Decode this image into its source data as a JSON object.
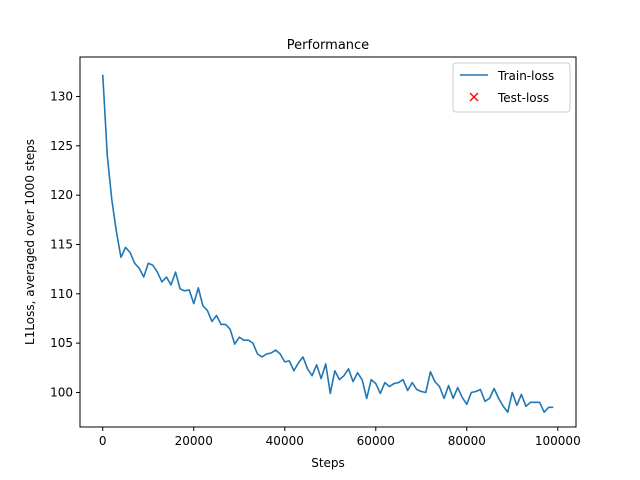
{
  "chart_data": {
    "type": "line",
    "title": "Performance",
    "xlabel": "Steps",
    "ylabel": "L1Loss, averaged over 1000 steps",
    "xlim": [
      -5000,
      104000
    ],
    "ylim": [
      96.5,
      134.0
    ],
    "xticks": [
      0,
      20000,
      40000,
      60000,
      80000,
      100000
    ],
    "yticks": [
      100,
      105,
      110,
      115,
      120,
      125,
      130
    ],
    "grid": false,
    "legend": {
      "placement": "top-right"
    },
    "series": [
      {
        "name": "Train-loss",
        "color": "#1f77b4",
        "marker": "line",
        "x": [
          0,
          1000,
          2000,
          3000,
          4000,
          5000,
          6000,
          7000,
          8000,
          9000,
          10000,
          11000,
          12000,
          13000,
          14000,
          15000,
          16000,
          17000,
          18000,
          19000,
          20000,
          21000,
          22000,
          23000,
          24000,
          25000,
          26000,
          27000,
          28000,
          29000,
          30000,
          31000,
          32000,
          33000,
          34000,
          35000,
          36000,
          37000,
          38000,
          39000,
          40000,
          41000,
          42000,
          43000,
          44000,
          45000,
          46000,
          47000,
          48000,
          49000,
          50000,
          51000,
          52000,
          53000,
          54000,
          55000,
          56000,
          57000,
          58000,
          59000,
          60000,
          61000,
          62000,
          63000,
          64000,
          65000,
          66000,
          67000,
          68000,
          69000,
          70000,
          71000,
          72000,
          73000,
          74000,
          75000,
          76000,
          77000,
          78000,
          79000,
          80000,
          81000,
          82000,
          83000,
          84000,
          85000,
          86000,
          87000,
          88000,
          89000,
          90000,
          91000,
          92000,
          93000,
          94000,
          95000,
          96000,
          97000,
          98000,
          99000
        ],
        "values": [
          132.2,
          124.0,
          119.5,
          116.3,
          113.7,
          114.7,
          114.2,
          113.1,
          112.6,
          111.7,
          113.1,
          112.9,
          112.2,
          111.2,
          111.7,
          110.9,
          112.2,
          110.5,
          110.3,
          110.4,
          109.0,
          110.6,
          108.8,
          108.3,
          107.2,
          107.8,
          106.9,
          106.9,
          106.4,
          104.9,
          105.6,
          105.3,
          105.3,
          105.0,
          103.9,
          103.6,
          103.9,
          104.0,
          104.3,
          103.9,
          103.1,
          103.2,
          102.2,
          103.0,
          103.6,
          102.4,
          101.7,
          102.8,
          101.4,
          102.9,
          99.9,
          102.2,
          101.3,
          101.7,
          102.4,
          101.1,
          102.0,
          101.3,
          99.4,
          101.3,
          100.9,
          99.9,
          101.0,
          100.6,
          100.9,
          101.0,
          101.3,
          100.2,
          101.0,
          100.3,
          100.1,
          100.0,
          102.1,
          101.1,
          100.6,
          99.4,
          100.7,
          99.4,
          100.5,
          99.5,
          98.8,
          100.0,
          100.1,
          100.3,
          99.1,
          99.4,
          100.4,
          99.4,
          98.6,
          98.0,
          100.0,
          98.7,
          99.8,
          98.6,
          99.0,
          99.0,
          99.0,
          98.0,
          98.5,
          98.5
        ]
      },
      {
        "name": "Test-loss",
        "color": "#ff0000",
        "marker": "x",
        "x": [],
        "values": []
      }
    ]
  }
}
